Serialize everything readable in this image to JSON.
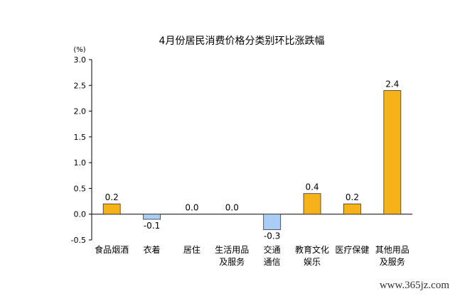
{
  "chart_data": {
    "type": "bar",
    "title": "4月份居民消费价格分类别环比涨跌幅",
    "ylabel": "(%)",
    "xlabel": "",
    "ylim": [
      -0.5,
      3.0
    ],
    "yticks": [
      "3.0",
      "2.5",
      "2.0",
      "1.5",
      "1.0",
      "0.5",
      "0.0",
      "-0.5"
    ],
    "ytick_values": [
      3.0,
      2.5,
      2.0,
      1.5,
      1.0,
      0.5,
      0.0,
      -0.5
    ],
    "categories": [
      [
        "食品烟酒"
      ],
      [
        "衣着"
      ],
      [
        "居住"
      ],
      [
        "生活用品",
        "及服务"
      ],
      [
        "交通",
        "通信"
      ],
      [
        "教育文化",
        "娱乐"
      ],
      [
        "医疗保健"
      ],
      [
        "其他用品",
        "及服务"
      ]
    ],
    "values": [
      0.2,
      -0.1,
      0.0,
      0.0,
      -0.3,
      0.4,
      0.2,
      2.4
    ],
    "value_labels": [
      "0.2",
      "-0.1",
      "0.0",
      "0.0",
      "-0.3",
      "0.4",
      "0.2",
      "2.4"
    ],
    "grid": false,
    "colors": {
      "positive_fill": "#f7b21a",
      "positive_stroke": "#333333",
      "negative_fill": "#a9cdf4",
      "negative_stroke": "#333333",
      "axis": "#000000",
      "text": "#000000"
    }
  },
  "watermark": "www.365jz.com"
}
